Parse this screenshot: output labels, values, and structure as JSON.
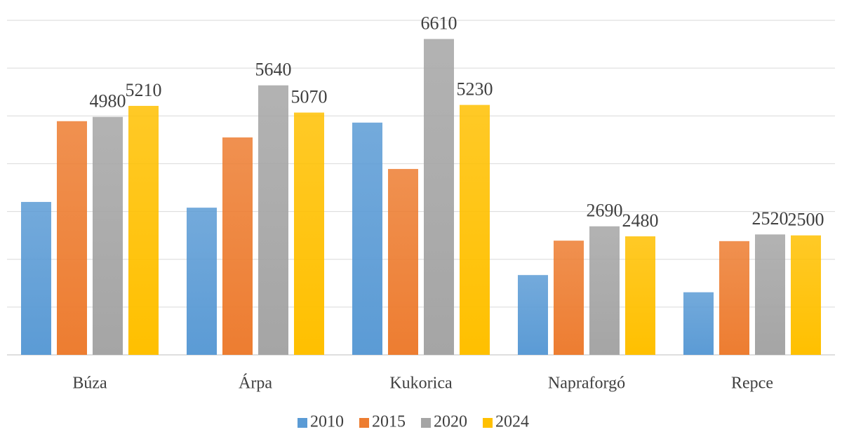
{
  "chart_data": {
    "type": "bar",
    "categories": [
      "Búza",
      "Árpa",
      "Kukorica",
      "Napraforgó",
      "Repce"
    ],
    "series": [
      {
        "name": "2010",
        "color": "#5b9bd5",
        "values": [
          3200,
          3080,
          4860,
          1670,
          1310
        ],
        "data_labels": false
      },
      {
        "name": "2015",
        "color": "#ed7d31",
        "values": [
          4890,
          4550,
          3890,
          2390,
          2380
        ],
        "data_labels": false
      },
      {
        "name": "2020",
        "color": "#a5a5a5",
        "values": [
          4980,
          5640,
          6610,
          2690,
          2520
        ],
        "data_labels": true
      },
      {
        "name": "2024",
        "color": "#ffc000",
        "values": [
          5210,
          5070,
          5230,
          2480,
          2500
        ],
        "data_labels": true
      }
    ],
    "ylim": [
      0,
      7000
    ],
    "yticks": [
      0,
      1000,
      2000,
      3000,
      4000,
      5000,
      6000,
      7000
    ],
    "ytick_labels": false,
    "grid": true,
    "legend": "bottom"
  }
}
